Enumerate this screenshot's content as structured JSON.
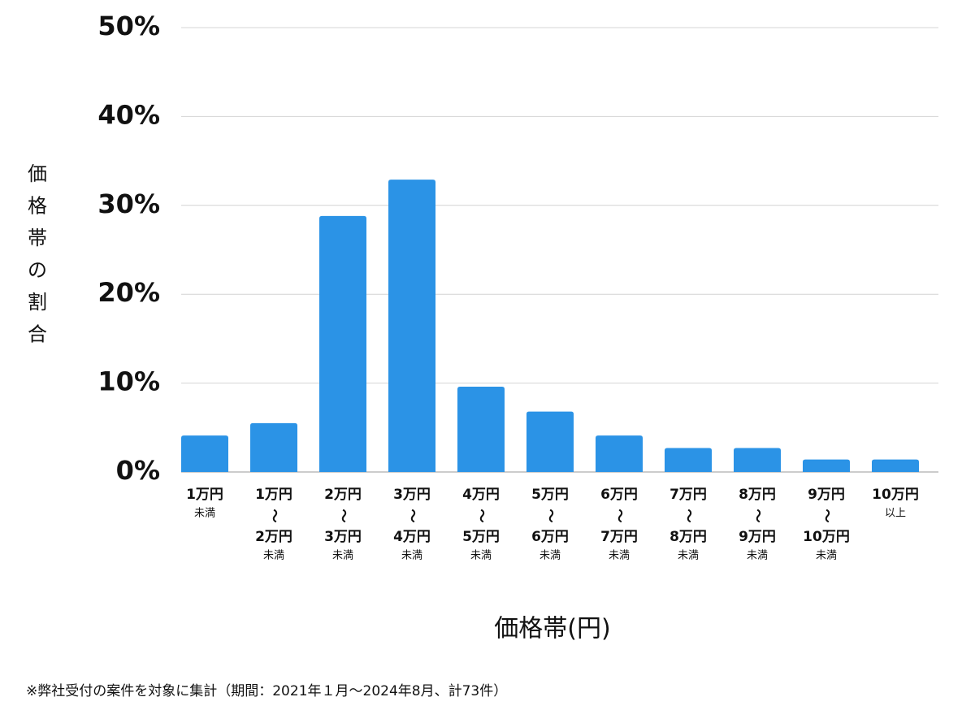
{
  "chart_data": {
    "type": "bar",
    "y_label": "価格帯の割合",
    "x_label": "価格帯(円)",
    "footnote": "※弊社受付の案件を対象に集計（期間：2021年１月～2024年8月、計73件）",
    "categories": [
      [
        "1万円",
        "未満"
      ],
      [
        "1万円",
        "〜",
        "2万円",
        "未満"
      ],
      [
        "2万円",
        "〜",
        "3万円",
        "未満"
      ],
      [
        "3万円",
        "〜",
        "4万円",
        "未満"
      ],
      [
        "4万円",
        "〜",
        "5万円",
        "未満"
      ],
      [
        "5万円",
        "〜",
        "6万円",
        "未満"
      ],
      [
        "6万円",
        "〜",
        "7万円",
        "未満"
      ],
      [
        "7万円",
        "〜",
        "8万円",
        "未満"
      ],
      [
        "8万円",
        "〜",
        "9万円",
        "未満"
      ],
      [
        "9万円",
        "〜",
        "10万円",
        "未満"
      ],
      [
        "10万円",
        "以上"
      ]
    ],
    "values": [
      4.1,
      5.5,
      28.8,
      32.9,
      9.6,
      6.8,
      4.1,
      2.7,
      2.7,
      1.4,
      1.4
    ],
    "color": "#2b93e6",
    "ylim": [
      0,
      50
    ],
    "yticks": [
      {
        "value": 0,
        "label": "0%"
      },
      {
        "value": 10,
        "label": "10%"
      },
      {
        "value": 20,
        "label": "20%"
      },
      {
        "value": 30,
        "label": "30%"
      },
      {
        "value": 40,
        "label": "40%"
      },
      {
        "value": 50,
        "label": "50%"
      }
    ],
    "grid": true
  }
}
